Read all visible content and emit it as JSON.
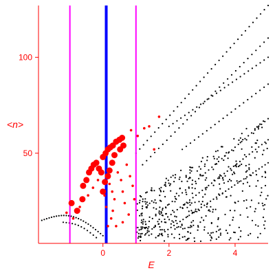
{
  "chart_data": {
    "type": "scatter",
    "title": "",
    "xlabel": "E",
    "ylabel": "<n>",
    "xlim": [
      -1.95,
      5.0
    ],
    "ylim": [
      3,
      127
    ],
    "xticks": [
      {
        "value": 0,
        "label": "0"
      },
      {
        "value": 2,
        "label": "2"
      },
      {
        "value": 4,
        "label": "4"
      }
    ],
    "yticks": [
      {
        "value": 50,
        "label": "50"
      },
      {
        "value": 100,
        "label": "100"
      }
    ],
    "grid": false,
    "legend": "none",
    "vertical_lines": [
      {
        "x": -1.0,
        "color": "#ff00ff",
        "role": "left-bound"
      },
      {
        "x": 0.1,
        "color": "#0000ff",
        "role": "center"
      },
      {
        "x": 1.0,
        "color": "#ff00ff",
        "role": "right-bound"
      }
    ],
    "series": [
      {
        "color": "#ff0000",
        "marker": "circle-large",
        "points": [
          [
            -0.95,
            24
          ],
          [
            -0.78,
            20
          ],
          [
            -0.62,
            26
          ],
          [
            -0.6,
            33
          ],
          [
            -0.5,
            36
          ],
          [
            -0.42,
            40
          ],
          [
            -0.35,
            42
          ],
          [
            -0.28,
            44
          ],
          [
            -0.2,
            45
          ],
          [
            -0.12,
            42
          ],
          [
            -0.05,
            40
          ],
          [
            0.0,
            48
          ],
          [
            0.08,
            50
          ],
          [
            0.15,
            52
          ],
          [
            0.22,
            53
          ],
          [
            0.3,
            54
          ],
          [
            0.4,
            56
          ],
          [
            0.5,
            57
          ],
          [
            0.58,
            58
          ],
          [
            0.62,
            54
          ],
          [
            0.52,
            52
          ],
          [
            0.35,
            49
          ],
          [
            0.28,
            45
          ],
          [
            0.2,
            41
          ],
          [
            0.15,
            38
          ],
          [
            0.06,
            35
          ],
          [
            0.0,
            30
          ]
        ]
      },
      {
        "color": "#ff0000",
        "marker": "circle-small",
        "points": [
          [
            -1.1,
            19
          ],
          [
            -0.9,
            16
          ],
          [
            -0.7,
            22
          ],
          [
            -0.45,
            28
          ],
          [
            -0.3,
            32
          ],
          [
            -0.15,
            36
          ],
          [
            0.05,
            28
          ],
          [
            0.1,
            22
          ],
          [
            0.2,
            34
          ],
          [
            0.28,
            30
          ],
          [
            0.35,
            26
          ],
          [
            0.45,
            40
          ],
          [
            0.55,
            36
          ],
          [
            0.6,
            30
          ],
          [
            0.66,
            24
          ],
          [
            0.72,
            44
          ],
          [
            0.82,
            38
          ],
          [
            0.9,
            33
          ],
          [
            0.95,
            26
          ],
          [
            0.78,
            18
          ],
          [
            0.6,
            14
          ],
          [
            0.4,
            12
          ],
          [
            0.25,
            16
          ],
          [
            0.3,
            20
          ],
          [
            0.15,
            12
          ],
          [
            1.05,
            59
          ],
          [
            1.25,
            63
          ],
          [
            1.4,
            64
          ],
          [
            1.7,
            69
          ],
          [
            1.55,
            52
          ],
          [
            0.85,
            62
          ]
        ]
      },
      {
        "color": "#000000",
        "marker": "dot",
        "branches": [
          {
            "from": [
              -1.85,
              15
            ],
            "to": [
              0.0,
              7
            ],
            "bulge": 6,
            "count": 26
          },
          {
            "from": [
              -1.2,
              14
            ],
            "to": [
              -0.2,
              6
            ],
            "bulge": 2,
            "count": 12
          },
          {
            "from": [
              1.0,
              50
            ],
            "to": [
              5.0,
              127
            ],
            "bulge": 0,
            "count": 36
          },
          {
            "from": [
              1.2,
              44
            ],
            "to": [
              5.0,
              110
            ],
            "bulge": 0,
            "count": 32
          },
          {
            "from": [
              2.0,
              64
            ],
            "to": [
              5.0,
              100
            ],
            "bulge": 0,
            "count": 26
          },
          {
            "from": [
              2.4,
              52
            ],
            "to": [
              5.0,
              86
            ],
            "bulge": 0,
            "count": 22
          },
          {
            "from": [
              1.1,
              10
            ],
            "to": [
              5.0,
              68
            ],
            "bulge": 0,
            "count": 40
          },
          {
            "from": [
              1.3,
              8
            ],
            "to": [
              5.0,
              57
            ],
            "bulge": 0,
            "count": 40
          },
          {
            "from": [
              1.6,
              6
            ],
            "to": [
              5.0,
              45
            ],
            "bulge": 0,
            "count": 38
          }
        ],
        "cloud": {
          "xmin": 1.0,
          "xmax": 5.0,
          "ymin": 4,
          "ymax": 70,
          "count": 420,
          "seed": 17
        }
      }
    ]
  }
}
